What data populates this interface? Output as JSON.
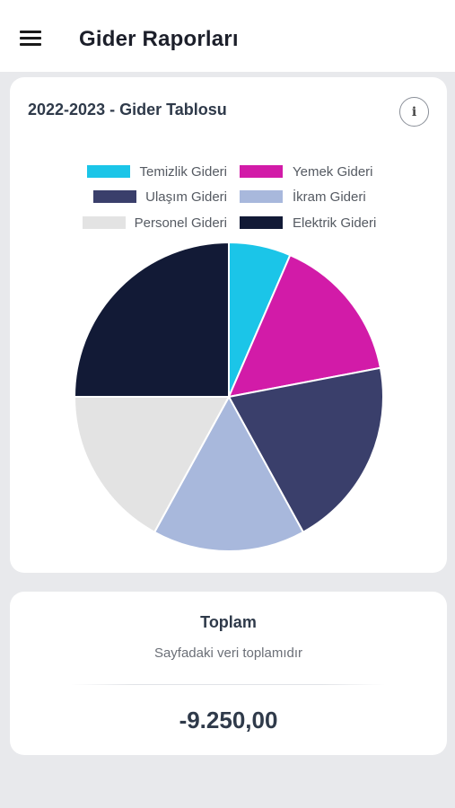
{
  "appbar": {
    "title": "Gider Raporları",
    "menu_icon": "hamburger-menu-icon"
  },
  "chart_card": {
    "title": "2022-2023 - Gider Tablosu",
    "info_icon_glyph": "i"
  },
  "chart_data": {
    "type": "pie",
    "title": "2022-2023 - Gider Tablosu",
    "legend_position": "top",
    "series": [
      {
        "name": "Temizlik Gideri",
        "value": 6.5,
        "color": "#1bc5e8"
      },
      {
        "name": "Yemek Gideri",
        "value": 15.5,
        "color": "#d21ba8"
      },
      {
        "name": "Ulaşım Gideri",
        "value": 20,
        "color": "#3a3f6b"
      },
      {
        "name": "İkram Gideri",
        "value": 16,
        "color": "#a8b8dc"
      },
      {
        "name": "Personel Gideri",
        "value": 17,
        "color": "#e3e3e3"
      },
      {
        "name": "Elektrik Gideri",
        "value": 25,
        "color": "#121a36"
      }
    ]
  },
  "total_card": {
    "title": "Toplam",
    "subtitle": "Sayfadaki veri toplamıdır",
    "value": "-9.250,00"
  }
}
